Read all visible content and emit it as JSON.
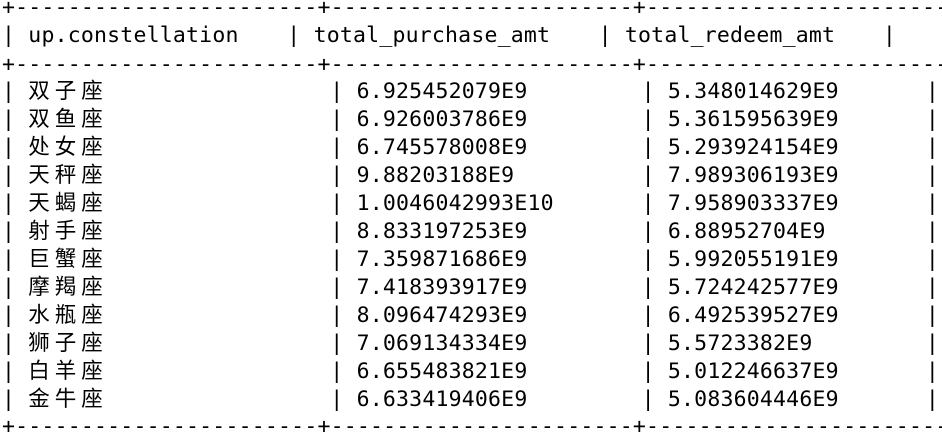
{
  "table": {
    "border_line": "+-----------------------+-----------------------+-----------------------+",
    "columns": [
      "up.constellation",
      "total_purchase_amt",
      "total_redeem_amt"
    ],
    "rows": [
      {
        "constellation": "双子座",
        "purchase": "6.925452079E9",
        "redeem": "5.348014629E9"
      },
      {
        "constellation": "双鱼座",
        "purchase": "6.926003786E9",
        "redeem": "5.361595639E9"
      },
      {
        "constellation": "处女座",
        "purchase": "6.745578008E9",
        "redeem": "5.293924154E9"
      },
      {
        "constellation": "天秤座",
        "purchase": "9.88203188E9",
        "redeem": "7.989306193E9"
      },
      {
        "constellation": "天蝎座",
        "purchase": "1.0046042993E10",
        "redeem": "7.958903337E9"
      },
      {
        "constellation": "射手座",
        "purchase": "8.833197253E9",
        "redeem": "6.88952704E9"
      },
      {
        "constellation": "巨蟹座",
        "purchase": "7.359871686E9",
        "redeem": "5.992055191E9"
      },
      {
        "constellation": "摩羯座",
        "purchase": "7.418393917E9",
        "redeem": "5.724242577E9"
      },
      {
        "constellation": "水瓶座",
        "purchase": "8.096474293E9",
        "redeem": "6.492539527E9"
      },
      {
        "constellation": "狮子座",
        "purchase": "7.069134334E9",
        "redeem": "5.5723382E9"
      },
      {
        "constellation": "白羊座",
        "purchase": "6.655483821E9",
        "redeem": "5.012246637E9"
      },
      {
        "constellation": "金牛座",
        "purchase": "6.633419406E9",
        "redeem": "5.083604446E9"
      }
    ]
  }
}
